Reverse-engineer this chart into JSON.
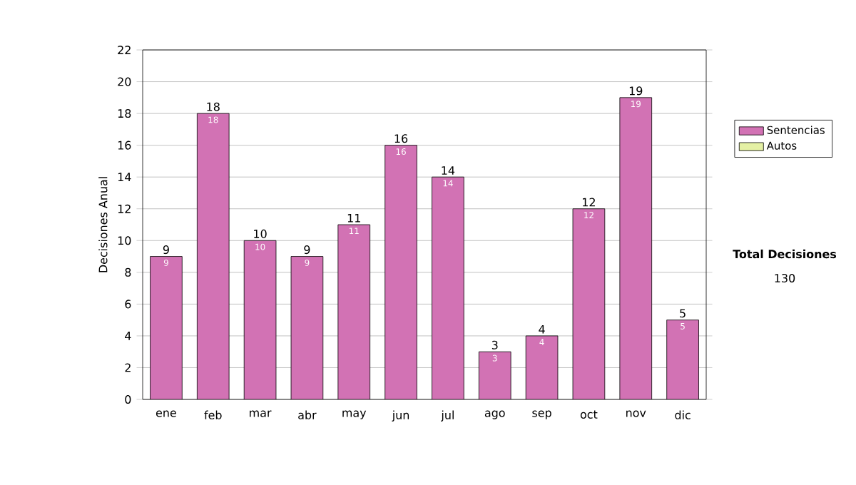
{
  "chart_data": {
    "type": "bar",
    "ylabel": "Decisiones Anual",
    "categories": [
      "ene",
      "feb",
      "mar",
      "abr",
      "may",
      "jun",
      "jul",
      "ago",
      "sep",
      "oct",
      "nov",
      "dic"
    ],
    "series": [
      {
        "name": "Sentencias",
        "color": "#d272b4",
        "values": [
          9,
          18,
          10,
          9,
          11,
          16,
          14,
          3,
          4,
          12,
          19,
          5
        ]
      },
      {
        "name": "Autos",
        "color": "#e4f0a4",
        "values": [
          null,
          null,
          null,
          null,
          null,
          null,
          null,
          null,
          null,
          null,
          null,
          null
        ]
      }
    ],
    "ylim": [
      0,
      22
    ],
    "yticks": [
      0,
      2,
      4,
      6,
      8,
      10,
      12,
      14,
      16,
      18,
      20,
      22
    ],
    "grid": "y",
    "legend": "right",
    "data_labels": true,
    "annotations": [
      "Total Decisiones",
      "130",
      {
        "text": "9",
        "x": "ene",
        "y": 9
      },
      {
        "text": "18",
        "x": "feb",
        "y": 18
      },
      {
        "text": "10",
        "x": "mar",
        "y": 10
      },
      {
        "text": "9",
        "x": "abr",
        "y": 9
      },
      {
        "text": "11",
        "x": "may",
        "y": 11
      },
      {
        "text": "16",
        "x": "jun",
        "y": 16
      },
      {
        "text": "14",
        "x": "jul",
        "y": 14
      },
      {
        "text": "3",
        "x": "ago",
        "y": 3
      },
      {
        "text": "4",
        "x": "sep",
        "y": 4
      },
      {
        "text": "12",
        "x": "oct",
        "y": 12
      },
      {
        "text": "19",
        "x": "nov",
        "y": 19
      },
      {
        "text": "5",
        "x": "dic",
        "y": 5
      }
    ]
  }
}
